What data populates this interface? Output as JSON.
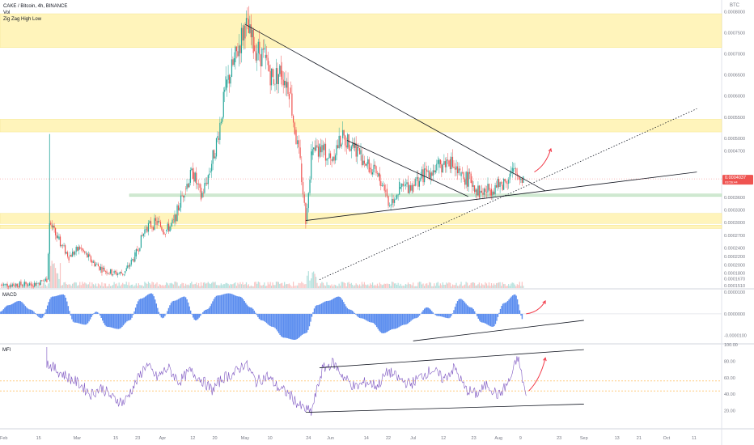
{
  "legend": {
    "symbol": "CAKE / Bitcoin, 4h, BINANCE",
    "vol": "Vol",
    "zigzag": "Zig Zag High Low"
  },
  "corner_label": "BTC",
  "panes": {
    "macd": "MACD",
    "mfi": "MFI"
  },
  "price_tag": {
    "value": "0.0004037",
    "sub": "03:56:44"
  },
  "colors": {
    "up": "#26a69a",
    "down": "#ef5350",
    "macd_hist": "#5b8def",
    "mfi_line": "#7e57c2",
    "zone_yellow": "#fff3b0",
    "zone_green": "#c8e6c9",
    "trendline": "#131722",
    "arrow": "#f23645"
  },
  "chart_data": [
    {
      "type": "candlestick",
      "title": "CAKE / Bitcoin, 4h, BINANCE",
      "x_ticks": [
        "Feb",
        "15",
        "Mar",
        "15",
        "23",
        "Apr",
        "12",
        "20",
        "May",
        "10",
        "24",
        "Jun",
        "14",
        "22",
        "Jul",
        "12",
        "23",
        "Aug",
        "9",
        "23",
        "Sep",
        "13",
        "21",
        "Oct",
        "11"
      ],
      "y_ticks": [
        "0.0008000",
        "0.0007500",
        "0.0007000",
        "0.0006500",
        "0.0006000",
        "0.0005500",
        "0.0005000",
        "0.0004700",
        "0.0004000",
        "0.0003600",
        "0.0003300",
        "0.0003000",
        "0.0002700",
        "0.0002400",
        "0.0002200",
        "0.0002000",
        "0.0001800",
        "0.0001670",
        "0.0001510"
      ],
      "ylim": [
        0.000145,
        0.00082
      ],
      "path": [
        [
          "Feb 1",
          0.000152
        ],
        [
          "Feb 14",
          0.000155
        ],
        [
          "Feb 18",
          0.000165
        ],
        [
          "Feb 19",
          0.0003
        ],
        [
          "Feb 22",
          0.00026
        ],
        [
          "Feb 26",
          0.00022
        ],
        [
          "Mar 2",
          0.00024
        ],
        [
          "Mar 6",
          0.00021
        ],
        [
          "Mar 10",
          0.00019
        ],
        [
          "Mar 14",
          0.00018
        ],
        [
          "Mar 18",
          0.00018
        ],
        [
          "Mar 22",
          0.00022
        ],
        [
          "Mar 26",
          0.00029
        ],
        [
          "Mar 30",
          0.0003
        ],
        [
          "Apr 2",
          0.00028
        ],
        [
          "Apr 5",
          0.0003
        ],
        [
          "Apr 9",
          0.00038
        ],
        [
          "Apr 12",
          0.00042
        ],
        [
          "Apr 15",
          0.00036
        ],
        [
          "Apr 18",
          0.00042
        ],
        [
          "Apr 21",
          0.0005
        ],
        [
          "Apr 24",
          0.00062
        ],
        [
          "Apr 27",
          0.00068
        ],
        [
          "May 1",
          0.00077
        ],
        [
          "May 4",
          0.00072
        ],
        [
          "May 8",
          0.00069
        ],
        [
          "May 11",
          0.00064
        ],
        [
          "May 14",
          0.00066
        ],
        [
          "May 17",
          0.00062
        ],
        [
          "May 19",
          0.00052
        ],
        [
          "May 21",
          0.00044
        ],
        [
          "May 23",
          0.000305
        ],
        [
          "May 25",
          0.00046
        ],
        [
          "May 28",
          0.00048
        ],
        [
          "Jun 1",
          0.00045
        ],
        [
          "Jun 5",
          0.0005
        ],
        [
          "Jun 9",
          0.00049
        ],
        [
          "Jun 12",
          0.00046
        ],
        [
          "Jun 15",
          0.00043
        ],
        [
          "Jun 18",
          0.00041
        ],
        [
          "Jun 21",
          0.00038
        ],
        [
          "Jun 22",
          0.00034
        ],
        [
          "Jun 26",
          0.00038
        ],
        [
          "Jul 1",
          0.00039
        ],
        [
          "Jul 6",
          0.00042
        ],
        [
          "Jul 10",
          0.00043
        ],
        [
          "Jul 14",
          0.00045
        ],
        [
          "Jul 18",
          0.00041
        ],
        [
          "Jul 22",
          0.0004
        ],
        [
          "Jul 25",
          0.00037
        ],
        [
          "Jul 29",
          0.00038
        ],
        [
          "Aug 2",
          0.00039
        ],
        [
          "Aug 6",
          0.00042
        ],
        [
          "Aug 10",
          0.000405
        ]
      ],
      "zones": [
        {
          "color": "yellow",
          "from": 0.000715,
          "to": 0.000795
        },
        {
          "color": "yellow",
          "from": 0.000515,
          "to": 0.000545
        },
        {
          "color": "green",
          "from": 0.000362,
          "to": 0.000368
        },
        {
          "color": "yellow",
          "from": 0.000298,
          "to": 0.000322
        },
        {
          "color": "yellow",
          "from": 0.000286,
          "to": 0.000294
        }
      ],
      "annotations": [
        {
          "type": "trendline",
          "from": [
            "May 1",
            0.00077
          ],
          "to": [
            "Aug 18",
            0.000375
          ]
        },
        {
          "type": "trendline",
          "from": [
            "Jun 7",
            0.000495
          ],
          "to": [
            "Jul 21",
            0.000362
          ]
        },
        {
          "type": "trendline",
          "from": [
            "May 23",
            0.000305
          ],
          "to": [
            "Oct 12",
            0.00042
          ]
        },
        {
          "type": "trendline-dotted",
          "from": [
            "May 28",
            0.000165
          ],
          "to": [
            "Oct 12",
            0.00057
          ]
        },
        {
          "type": "arrow",
          "from": [
            "Aug 14",
            0.00042
          ],
          "to": [
            "Aug 20",
            0.000475
          ]
        }
      ],
      "volume": {
        "grid": false
      }
    },
    {
      "type": "bar",
      "title": "MACD",
      "y_ticks": [
        "0.0000100",
        "0.0000000",
        "-0.0000100"
      ],
      "ylim": [
        -1.35e-05,
        1.12e-05
      ],
      "x": [
        "Feb 1",
        "Feb 4",
        "Feb 8",
        "Feb 12",
        "Feb 16",
        "Feb 20",
        "Feb 24",
        "Feb 28",
        "Mar 4",
        "Mar 8",
        "Mar 12",
        "Mar 16",
        "Mar 20",
        "Mar 24",
        "Mar 28",
        "Apr 1",
        "Apr 5",
        "Apr 9",
        "Apr 13",
        "Apr 17",
        "Apr 21",
        "Apr 25",
        "Apr 29",
        "May 3",
        "May 7",
        "May 11",
        "May 15",
        "May 19",
        "May 23",
        "May 27",
        "May 31",
        "Jun 4",
        "Jun 8",
        "Jun 12",
        "Jun 16",
        "Jun 20",
        "Jun 24",
        "Jun 28",
        "Jul 2",
        "Jul 6",
        "Jul 10",
        "Jul 14",
        "Jul 18",
        "Jul 22",
        "Jul 26",
        "Jul 30",
        "Aug 3",
        "Aug 7",
        "Aug 10"
      ],
      "values": [
        1e-06,
        4e-06,
        6e-06,
        2e-06,
        -2e-06,
        8e-06,
        9e-06,
        -4e-06,
        -5e-06,
        1e-06,
        -6e-06,
        -7e-06,
        -3e-06,
        7e-06,
        9.5e-06,
        -2e-06,
        6e-06,
        8e-06,
        -3e-06,
        2e-06,
        8.5e-06,
        9.5e-06,
        8e-06,
        3e-06,
        -3e-06,
        -6e-06,
        -1.1e-05,
        -1.2e-05,
        -9e-06,
        4e-06,
        6e-06,
        8e-06,
        2e-06,
        -2e-06,
        -4e-06,
        -9e-06,
        -7e-06,
        -5e-06,
        -2e-06,
        3e-06,
        -1e-06,
        -2e-06,
        7e-06,
        3e-06,
        -4e-06,
        -6e-06,
        5e-06,
        9e-06,
        -3e-06
      ],
      "annotations": [
        {
          "type": "trendline",
          "from": [
            "Jul 1",
            -1.25e-05
          ],
          "to": [
            "Sep 1",
            -3e-06
          ]
        },
        {
          "type": "arrow",
          "from": [
            "Aug 11",
            0.0
          ],
          "to": [
            "Aug 18",
            6e-06
          ]
        }
      ]
    },
    {
      "type": "line",
      "title": "MFI",
      "y_ticks": [
        "100.00",
        "80.00",
        "60.00",
        "40.00",
        "20.00"
      ],
      "ylim": [
        0,
        100
      ],
      "reference_levels": [
        56,
        44
      ],
      "x": [
        "Feb 18",
        "Feb 22",
        "Feb 26",
        "Mar 2",
        "Mar 6",
        "Mar 10",
        "Mar 14",
        "Mar 18",
        "Mar 22",
        "Mar 26",
        "Mar 30",
        "Apr 3",
        "Apr 7",
        "Apr 11",
        "Apr 15",
        "Apr 19",
        "Apr 23",
        "Apr 27",
        "May 1",
        "May 5",
        "May 9",
        "May 13",
        "May 17",
        "May 21",
        "May 25",
        "May 29",
        "Jun 2",
        "Jun 6",
        "Jun 10",
        "Jun 14",
        "Jun 18",
        "Jun 22",
        "Jun 26",
        "Jun 30",
        "Jul 4",
        "Jul 8",
        "Jul 12",
        "Jul 16",
        "Jul 20",
        "Jul 24",
        "Jul 28",
        "Aug 1",
        "Aug 5",
        "Aug 8",
        "Aug 11"
      ],
      "values": [
        78,
        68,
        60,
        52,
        40,
        48,
        35,
        30,
        52,
        76,
        60,
        72,
        55,
        68,
        58,
        45,
        60,
        65,
        78,
        55,
        62,
        48,
        40,
        25,
        18,
        70,
        78,
        60,
        48,
        55,
        50,
        68,
        58,
        52,
        62,
        70,
        58,
        72,
        46,
        40,
        52,
        38,
        56,
        85,
        38
      ],
      "annotations": [
        {
          "type": "trendline",
          "from": [
            "May 28",
            72
          ],
          "to": [
            "Sep 1",
            94
          ]
        },
        {
          "type": "trendline",
          "from": [
            "May 23",
            18
          ],
          "to": [
            "Sep 1",
            28
          ]
        },
        {
          "type": "arrow",
          "from": [
            "Aug 12",
            44
          ],
          "to": [
            "Aug 18",
            84
          ]
        }
      ]
    }
  ]
}
